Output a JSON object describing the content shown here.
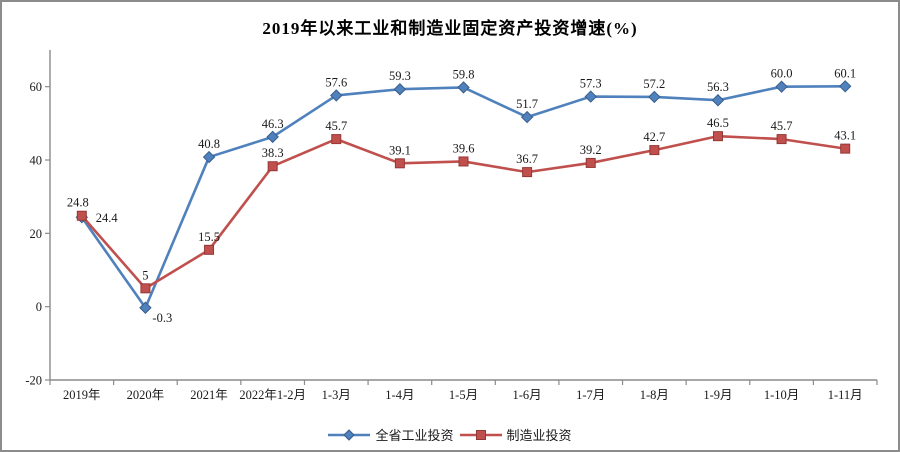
{
  "title": "2019年以来工业和制造业固定资产投资增速(%)",
  "chart_data": {
    "type": "line",
    "title": "2019年以来工业和制造业固定资产投资增速(%)",
    "categories": [
      "2019年",
      "2020年",
      "2021年",
      "2022年1-2月",
      "1-3月",
      "1-4月",
      "1-5月",
      "1-6月",
      "1-7月",
      "1-8月",
      "1-9月",
      "1-10月",
      "1-11月"
    ],
    "series": [
      {
        "name": "全省工业投资",
        "marker": "diamond",
        "color": "#4F81BD",
        "marker_stroke": "#385D8A",
        "values": [
          24.4,
          -0.3,
          40.8,
          46.3,
          57.6,
          59.3,
          59.8,
          51.7,
          57.3,
          57.2,
          56.3,
          60.0,
          60.1
        ],
        "labels": [
          "24.4",
          "-0.3",
          "40.8",
          "46.3",
          "57.6",
          "59.3",
          "59.8",
          "51.7",
          "57.3",
          "57.2",
          "56.3",
          "60.0",
          "60.1"
        ],
        "label_offsets": {
          "0": [
            14,
            5,
            "start"
          ],
          "1": [
            7,
            14,
            "start"
          ]
        }
      },
      {
        "name": "制造业投资",
        "marker": "square",
        "color": "#C0504D",
        "marker_stroke": "#953735",
        "values": [
          24.8,
          5,
          15.5,
          38.3,
          45.7,
          39.1,
          39.6,
          36.7,
          39.2,
          42.7,
          46.5,
          45.7,
          43.1
        ],
        "labels": [
          "24.8",
          "5",
          "15.5",
          "38.3",
          "45.7",
          "39.1",
          "39.6",
          "36.7",
          "39.2",
          "42.7",
          "46.5",
          "45.7",
          "43.1"
        ],
        "label_offsets": {
          "0": [
            -4,
            -9,
            "middle"
          ]
        }
      }
    ],
    "ylim": [
      -20,
      70
    ],
    "yticks": [
      -20,
      0,
      20,
      40,
      60
    ],
    "grid": false,
    "legend_position": "bottom",
    "axis_color": "#8a8a8a",
    "label_color": "#1a1a1a",
    "xlabel": "",
    "ylabel": ""
  }
}
